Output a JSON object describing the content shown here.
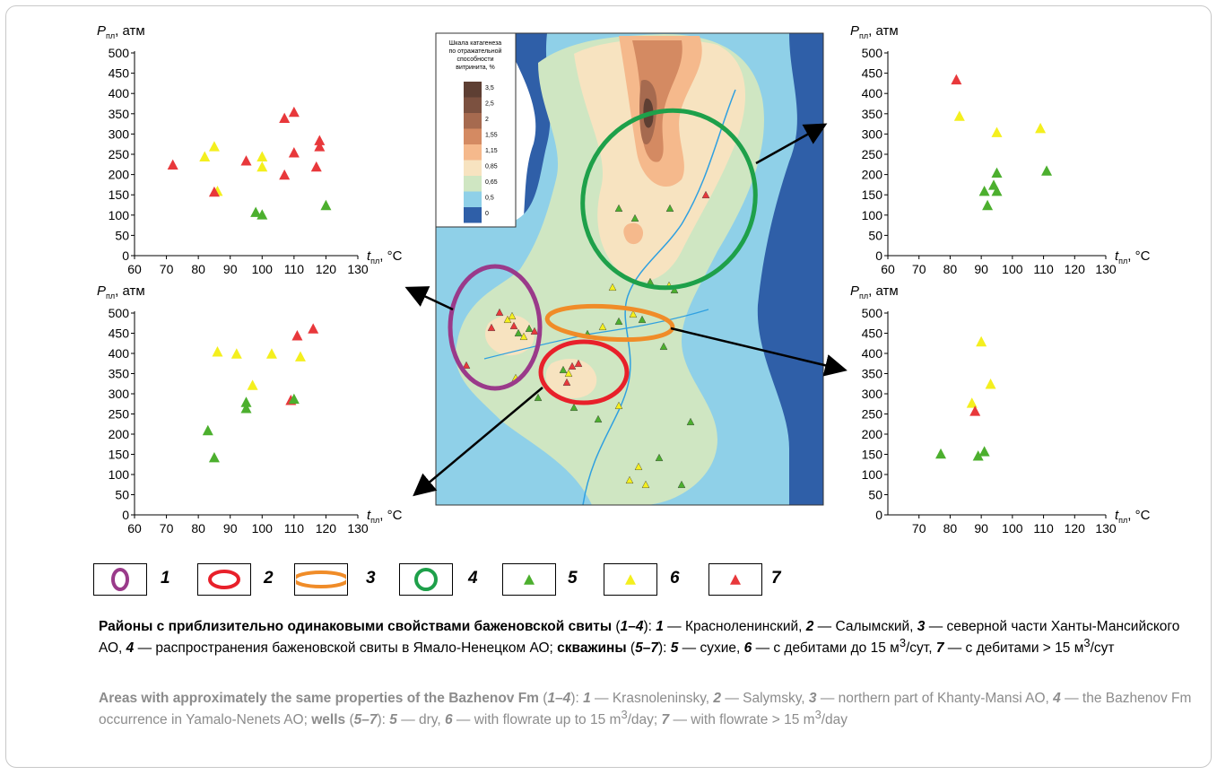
{
  "colors": {
    "dry": "#4caf2e",
    "low": "#f4ef1e",
    "high": "#e8383b",
    "zone1": "#9a3a8a",
    "zone2": "#e8202a",
    "zone3": "#f08c28",
    "zone4": "#1ea04a"
  },
  "chart_data": [
    {
      "type": "scatter",
      "position": "top-left",
      "xlabel_base": "t",
      "xlabel_sub": "пл",
      "xlabel_unit": ", °C",
      "ylabel_base": "P",
      "ylabel_sub": "пл",
      "ylabel_unit": ", атм",
      "xlim": [
        60,
        130
      ],
      "ylim": [
        0,
        500
      ],
      "xticks": [
        "60",
        "70",
        "80",
        "90",
        "100",
        "110",
        "120",
        "130"
      ],
      "yticks": [
        "0",
        "50",
        "100",
        "150",
        "200",
        "250",
        "300",
        "350",
        "400",
        "450",
        "500"
      ],
      "points": [
        {
          "x": 72,
          "y": 225,
          "cls": "high"
        },
        {
          "x": 82,
          "y": 245,
          "cls": "low"
        },
        {
          "x": 85,
          "y": 270,
          "cls": "low"
        },
        {
          "x": 86,
          "y": 160,
          "cls": "low"
        },
        {
          "x": 85,
          "y": 158,
          "cls": "high"
        },
        {
          "x": 95,
          "y": 235,
          "cls": "high"
        },
        {
          "x": 100,
          "y": 245,
          "cls": "low"
        },
        {
          "x": 100,
          "y": 220,
          "cls": "low"
        },
        {
          "x": 98,
          "y": 108,
          "cls": "dry"
        },
        {
          "x": 100,
          "y": 102,
          "cls": "dry"
        },
        {
          "x": 107,
          "y": 200,
          "cls": "high"
        },
        {
          "x": 107,
          "y": 340,
          "cls": "high"
        },
        {
          "x": 110,
          "y": 355,
          "cls": "high"
        },
        {
          "x": 110,
          "y": 255,
          "cls": "high"
        },
        {
          "x": 117,
          "y": 220,
          "cls": "high"
        },
        {
          "x": 118,
          "y": 285,
          "cls": "high"
        },
        {
          "x": 118,
          "y": 270,
          "cls": "high"
        },
        {
          "x": 120,
          "y": 125,
          "cls": "dry"
        }
      ]
    },
    {
      "type": "scatter",
      "position": "bottom-left",
      "xlabel_base": "t",
      "xlabel_sub": "пл",
      "xlabel_unit": ", °C",
      "ylabel_base": "P",
      "ylabel_sub": "пл",
      "ylabel_unit": ", атм",
      "xlim": [
        60,
        130
      ],
      "ylim": [
        0,
        500
      ],
      "xticks": [
        "60",
        "70",
        "80",
        "90",
        "100",
        "110",
        "120",
        "130"
      ],
      "yticks": [
        "0",
        "50",
        "100",
        "150",
        "200",
        "250",
        "300",
        "350",
        "400",
        "450",
        "500"
      ],
      "points": [
        {
          "x": 83,
          "y": 210,
          "cls": "dry"
        },
        {
          "x": 85,
          "y": 143,
          "cls": "dry"
        },
        {
          "x": 86,
          "y": 405,
          "cls": "low"
        },
        {
          "x": 92,
          "y": 400,
          "cls": "low"
        },
        {
          "x": 95,
          "y": 280,
          "cls": "dry"
        },
        {
          "x": 95,
          "y": 265,
          "cls": "dry"
        },
        {
          "x": 97,
          "y": 322,
          "cls": "low"
        },
        {
          "x": 103,
          "y": 400,
          "cls": "low"
        },
        {
          "x": 109,
          "y": 285,
          "cls": "high"
        },
        {
          "x": 110,
          "y": 288,
          "cls": "dry"
        },
        {
          "x": 111,
          "y": 445,
          "cls": "high"
        },
        {
          "x": 112,
          "y": 393,
          "cls": "low"
        },
        {
          "x": 116,
          "y": 462,
          "cls": "high"
        }
      ]
    },
    {
      "type": "scatter",
      "position": "top-right",
      "xlabel_base": "t",
      "xlabel_sub": "пл",
      "xlabel_unit": ", °C",
      "ylabel_base": "P",
      "ylabel_sub": "пл",
      "ylabel_unit": ", атм",
      "xlim": [
        60,
        130
      ],
      "ylim": [
        0,
        500
      ],
      "xticks": [
        "60",
        "70",
        "80",
        "90",
        "100",
        "110",
        "120",
        "130"
      ],
      "yticks": [
        "0",
        "50",
        "100",
        "150",
        "200",
        "250",
        "300",
        "350",
        "400",
        "450",
        "500"
      ],
      "points": [
        {
          "x": 82,
          "y": 435,
          "cls": "high"
        },
        {
          "x": 83,
          "y": 345,
          "cls": "low"
        },
        {
          "x": 95,
          "y": 305,
          "cls": "low"
        },
        {
          "x": 109,
          "y": 315,
          "cls": "low"
        },
        {
          "x": 91,
          "y": 160,
          "cls": "dry"
        },
        {
          "x": 92,
          "y": 125,
          "cls": "dry"
        },
        {
          "x": 94,
          "y": 175,
          "cls": "dry"
        },
        {
          "x": 95,
          "y": 205,
          "cls": "dry"
        },
        {
          "x": 95,
          "y": 160,
          "cls": "dry"
        },
        {
          "x": 111,
          "y": 210,
          "cls": "dry"
        }
      ]
    },
    {
      "type": "scatter",
      "position": "bottom-right",
      "xlabel_base": "t",
      "xlabel_sub": "пл",
      "xlabel_unit": ", °C",
      "ylabel_base": "P",
      "ylabel_sub": "пл",
      "ylabel_unit": ", атм",
      "xlim": [
        60,
        130
      ],
      "ylim": [
        0,
        500
      ],
      "xticks": [
        "70",
        "80",
        "90",
        "100",
        "110",
        "120",
        "130"
      ],
      "yticks": [
        "0",
        "50",
        "100",
        "150",
        "200",
        "250",
        "300",
        "350",
        "400",
        "450",
        "500"
      ],
      "points": [
        {
          "x": 77,
          "y": 152,
          "cls": "dry"
        },
        {
          "x": 87,
          "y": 278,
          "cls": "low"
        },
        {
          "x": 88,
          "y": 258,
          "cls": "high"
        },
        {
          "x": 89,
          "y": 147,
          "cls": "dry"
        },
        {
          "x": 90,
          "y": 430,
          "cls": "low"
        },
        {
          "x": 91,
          "y": 158,
          "cls": "dry"
        },
        {
          "x": 93,
          "y": 325,
          "cls": "low"
        }
      ]
    }
  ],
  "map_scale": {
    "title_lines": [
      "Шкала катагенеза",
      "по отражательной",
      "способности",
      "витринита, %"
    ],
    "levels": [
      {
        "label": "3,5",
        "color": "#5e3f33"
      },
      {
        "label": "2,5",
        "color": "#7c5140"
      },
      {
        "label": "2",
        "color": "#a66a4f"
      },
      {
        "label": "1,55",
        "color": "#d48a62"
      },
      {
        "label": "1,15",
        "color": "#f5b98c"
      },
      {
        "label": "0,85",
        "color": "#f7e3c0"
      },
      {
        "label": "0,65",
        "color": "#cfe6c2"
      },
      {
        "label": "0,5",
        "color": "#8fd0e8"
      },
      {
        "label": "0",
        "color": "#2f5fa8"
      }
    ]
  },
  "legend": [
    {
      "num": "1",
      "kind": "ellipse",
      "color_key": "zone1"
    },
    {
      "num": "2",
      "kind": "ellipse",
      "color_key": "zone2"
    },
    {
      "num": "3",
      "kind": "ellipse",
      "color_key": "zone3"
    },
    {
      "num": "4",
      "kind": "ellipse",
      "color_key": "zone4"
    },
    {
      "num": "5",
      "kind": "triangle",
      "color_key": "dry"
    },
    {
      "num": "6",
      "kind": "triangle",
      "color_key": "low"
    },
    {
      "num": "7",
      "kind": "triangle",
      "color_key": "high"
    }
  ],
  "caption_ru": {
    "p1": "Районы с приблизительно одинаковыми свойствами баженовской свиты",
    "p2": " (",
    "p3": "1–4",
    "p4": "): ",
    "p5": "1",
    "p6": " — Красноленинский, ",
    "p7": "2",
    "p8": " — Салымский, ",
    "p9": "3",
    "p10": " — северной части Ханты-Мансийского АО, ",
    "p11": "4",
    "p12": " — распространения баженовской свиты в Ямало-Ненецком АО; ",
    "p13": "скважины",
    "p14": " (",
    "p15": "5–7",
    "p16": "): ",
    "p17": "5",
    "p18": " — сухие, ",
    "p19": "6",
    "p20": " — с дебитами до 15 м",
    "p21": "3",
    "p22": "/сут, ",
    "p23": "7",
    "p24": " — с дебитами > 15 м",
    "p25": "3",
    "p26": "/сут"
  },
  "caption_en": {
    "p1": "Areas with approximately the same properties of the Bazhenov Fm",
    "p2": " (",
    "p3": "1–4",
    "p4": "): ",
    "p5": "1",
    "p6": " — Krasnoleninsky, ",
    "p7": "2",
    "p8": " — Salymsky, ",
    "p9": "3",
    "p10": " — northern part of Khanty-Mansi AO, ",
    "p11": "4",
    "p12": " — the Bazhenov Fm occurrence in Yamalo-Nenets AO; ",
    "p13": "wells",
    "p14": " (",
    "p15": "5–7",
    "p16": "): ",
    "p17": "5",
    "p18": " — dry, ",
    "p19": "6",
    "p20": " — with flowrate up to 15 m",
    "p21": "3",
    "p22": "/day; ",
    "p23": "7",
    "p24": " — with flowrate > 15 m",
    "p25": "3",
    "p26": "/day"
  }
}
